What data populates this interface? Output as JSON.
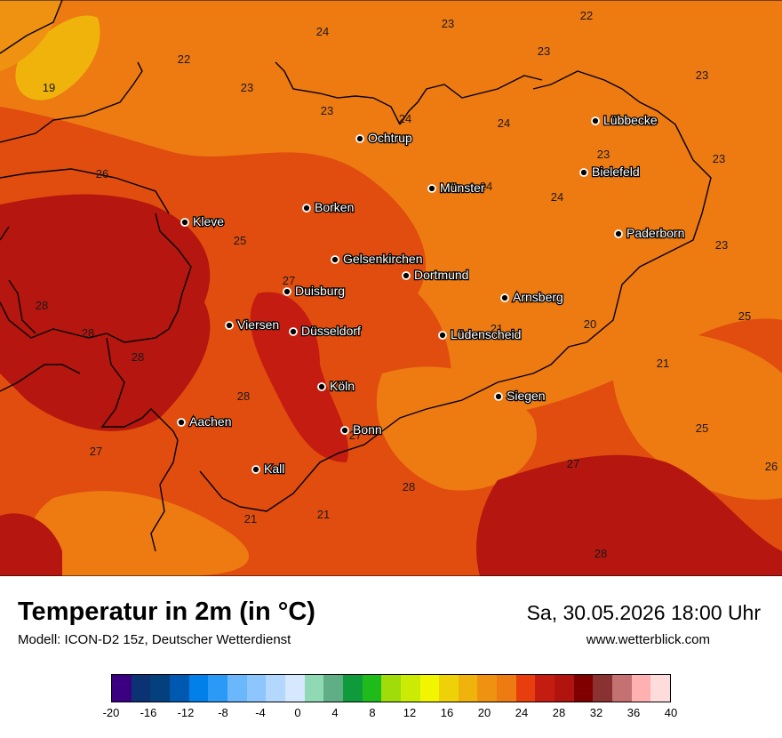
{
  "map": {
    "cities": [
      {
        "name": "Ochtrup"
      },
      {
        "name": "Lübbecke"
      },
      {
        "name": "Bielefeld"
      },
      {
        "name": "Münster"
      },
      {
        "name": "Borken"
      },
      {
        "name": "Kleve"
      },
      {
        "name": "Paderborn"
      },
      {
        "name": "Gelsenkirchen"
      },
      {
        "name": "Dortmund"
      },
      {
        "name": "Duisburg"
      },
      {
        "name": "Arnsberg"
      },
      {
        "name": "Viersen"
      },
      {
        "name": "Düsseldorf"
      },
      {
        "name": "Lüdenscheid"
      },
      {
        "name": "Köln"
      },
      {
        "name": "Siegen"
      },
      {
        "name": "Aachen"
      },
      {
        "name": "Bonn"
      },
      {
        "name": "Kall"
      }
    ],
    "value_labels": [
      "24",
      "23",
      "22",
      "22",
      "19",
      "23",
      "23",
      "24",
      "24",
      "23",
      "23",
      "26",
      "23",
      "24",
      "23",
      "24",
      "25",
      "23",
      "28",
      "27",
      "28",
      "28",
      "21",
      "20",
      "25",
      "28",
      "21",
      "25",
      "27",
      "27",
      "26",
      "28",
      "27",
      "21",
      "21",
      "28"
    ]
  },
  "footer": {
    "title": "Temperatur in 2m (in °C)",
    "model": "Modell: ICON-D2 15z, Deutscher Wetterdienst",
    "datetime": "Sa, 30.05.2026 18:00 Uhr",
    "website": "www.wetterblick.com"
  },
  "legend": {
    "ticks": [
      "-20",
      "-16",
      "-12",
      "-8",
      "-4",
      "0",
      "4",
      "8",
      "12",
      "16",
      "20",
      "24",
      "28",
      "32",
      "36",
      "40"
    ],
    "colors": [
      "#3b0082",
      "#0b3272",
      "#043f7e",
      "#0059b0",
      "#0080e8",
      "#2a9af6",
      "#6ab8fb",
      "#8cc6fc",
      "#b4d7fd",
      "#d6e8fe",
      "#8fd9b4",
      "#5fae86",
      "#0f9b3c",
      "#1fbb1b",
      "#9fdc0a",
      "#cbeb04",
      "#f2f500",
      "#eed207",
      "#efb30b",
      "#ef9212",
      "#ee7a12",
      "#e83d0d",
      "#c41c10",
      "#b1140f",
      "#800000",
      "#8a3232",
      "#c47171",
      "#ffb1b1",
      "#ffdcdc"
    ]
  }
}
